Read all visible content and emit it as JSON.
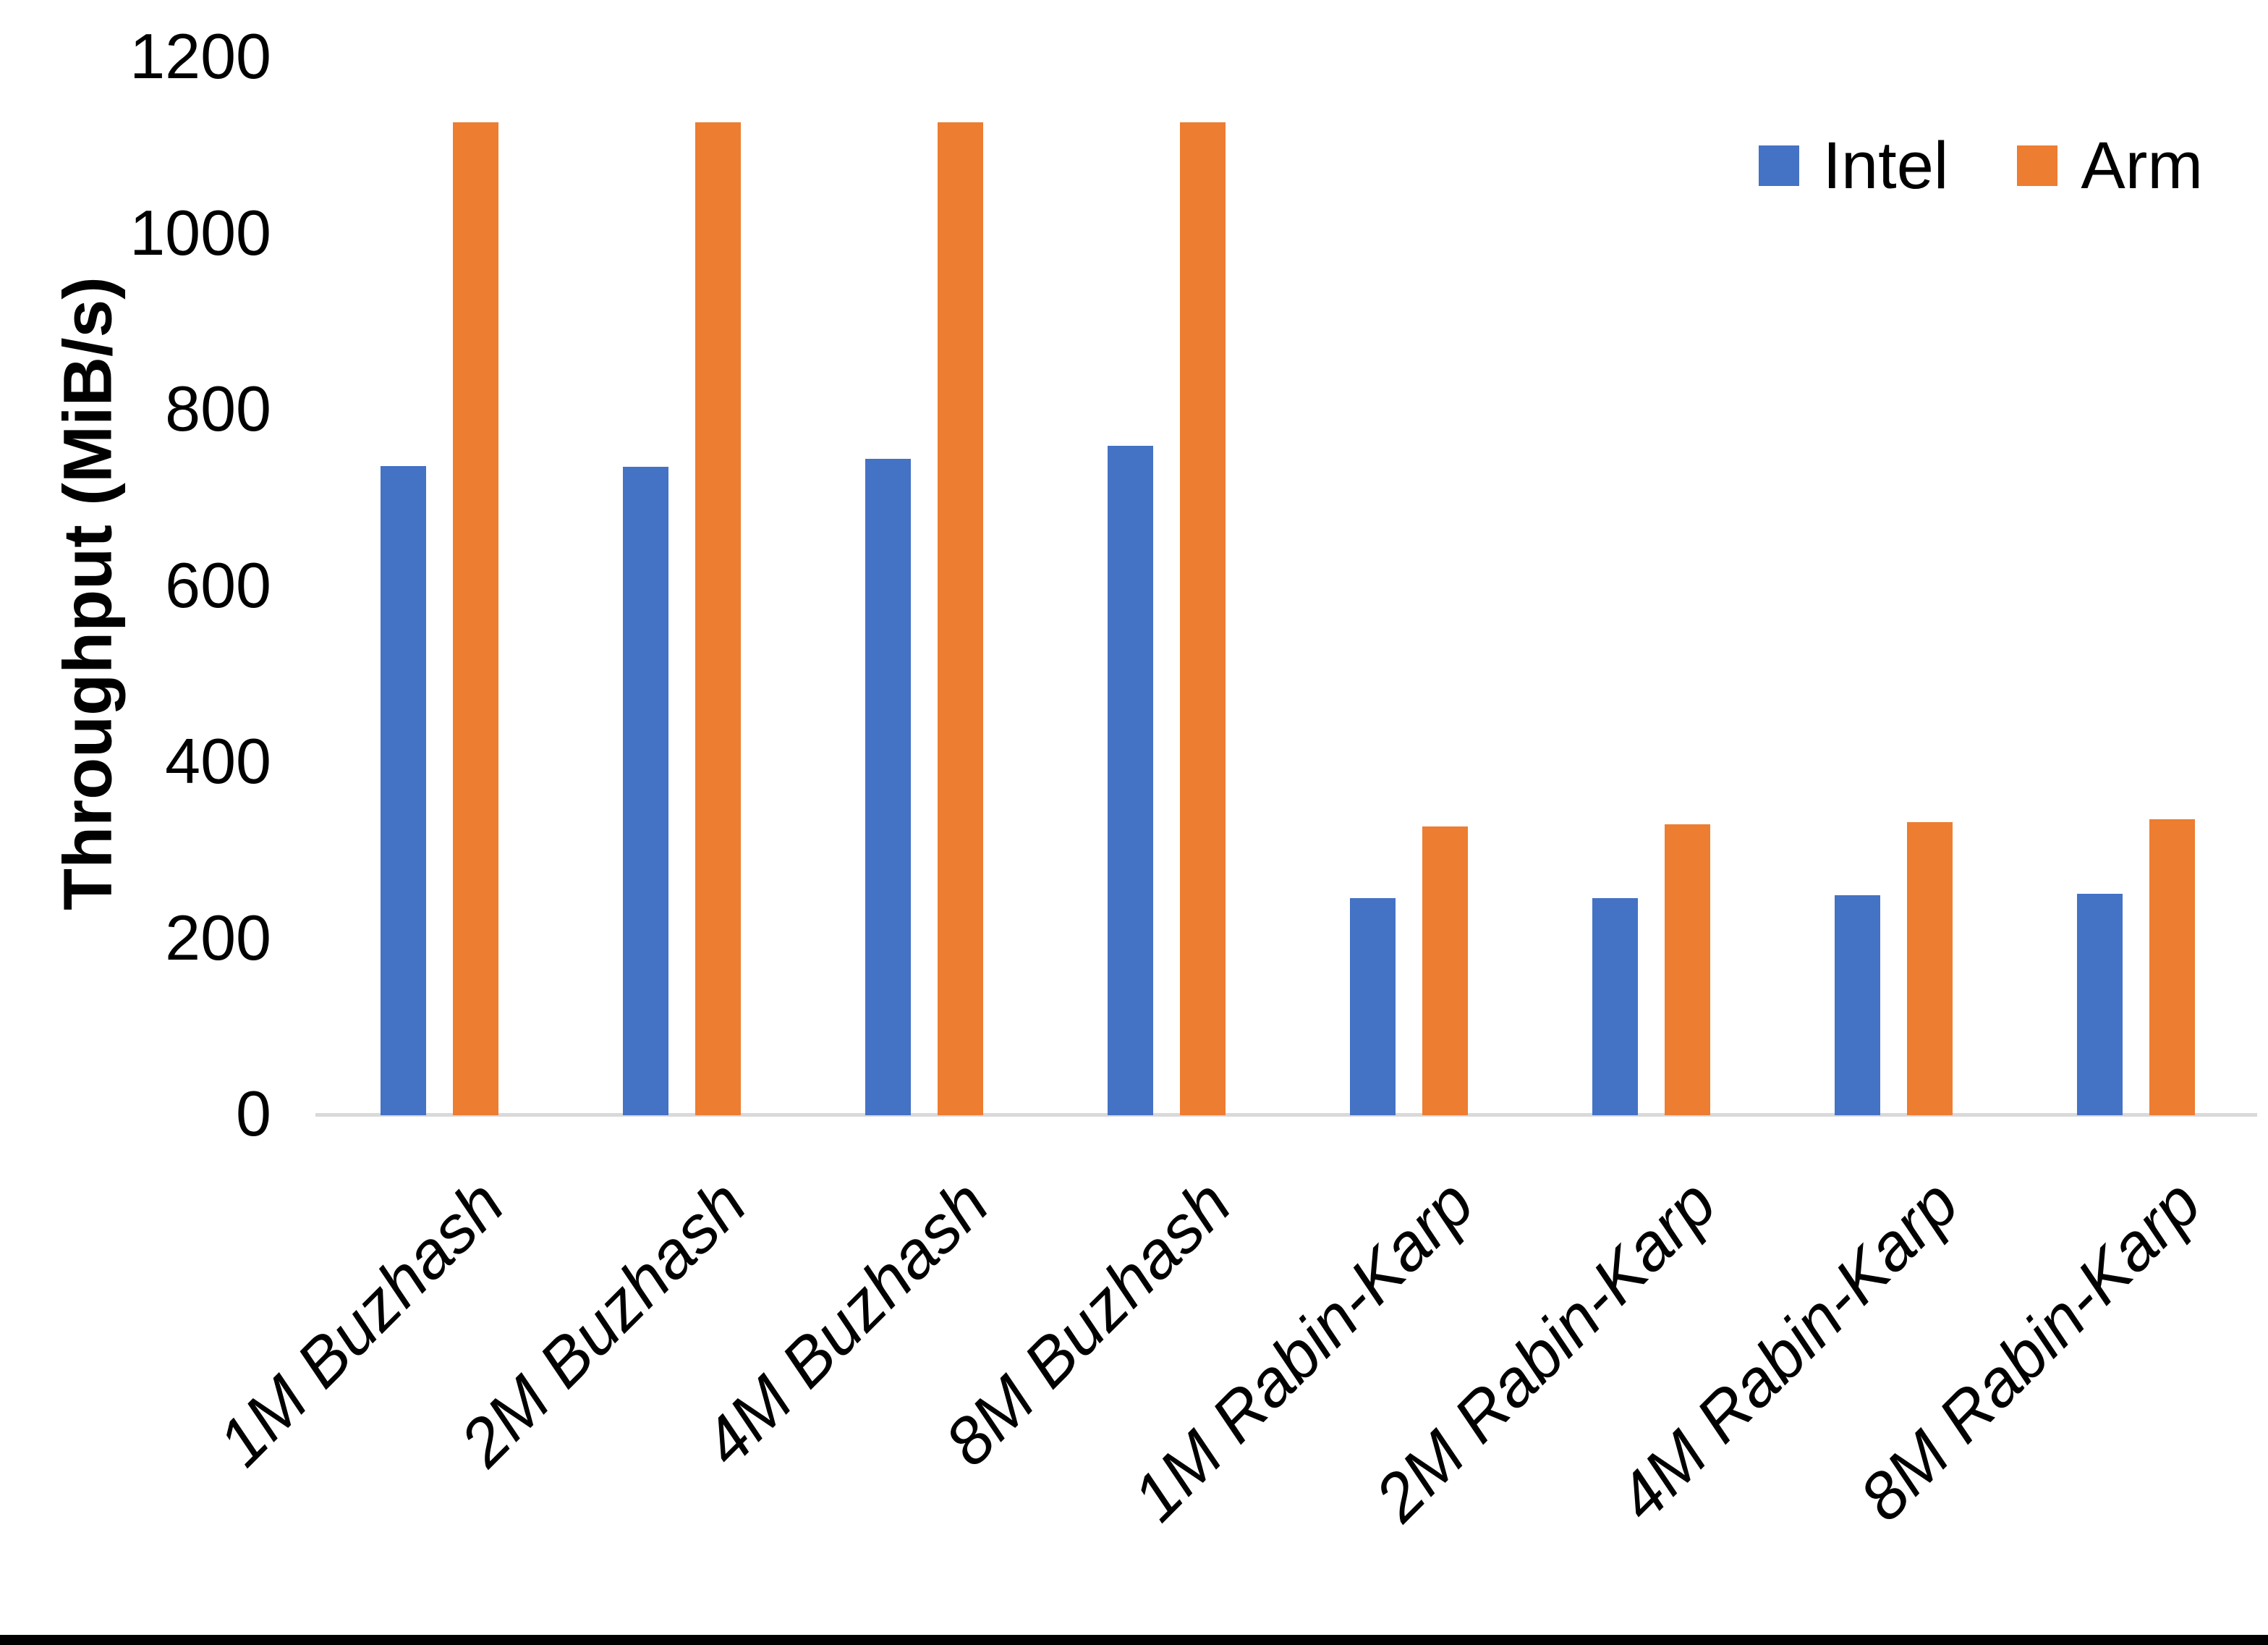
{
  "chart_data": {
    "type": "bar",
    "title": "",
    "xlabel": "",
    "ylabel": "Throughput (MiB/s)",
    "ylim": [
      0,
      1200
    ],
    "yticks": [
      0,
      200,
      400,
      600,
      800,
      1000,
      1200
    ],
    "grid": false,
    "legend_position": "top-right",
    "categories": [
      "1M Buzhash",
      "2M Buzhash",
      "4M Buzhash",
      "8M Buzhash",
      "1M Rabin-Karp",
      "2M Rabin-Karp",
      "4M Rabin-Karp",
      "8M Rabin-Karp"
    ],
    "series": [
      {
        "name": "Intel",
        "color": "#4472C4",
        "values": [
          737,
          736,
          745,
          760,
          246,
          246,
          250,
          251
        ]
      },
      {
        "name": "Arm",
        "color": "#ED7D31",
        "values": [
          1127,
          1127,
          1127,
          1127,
          328,
          330,
          333,
          336
        ]
      }
    ]
  },
  "colors": {
    "background": "#FFFFFF",
    "axis_line": "#D9D9D9",
    "text": "#000000",
    "bottom_border": "#000000"
  }
}
